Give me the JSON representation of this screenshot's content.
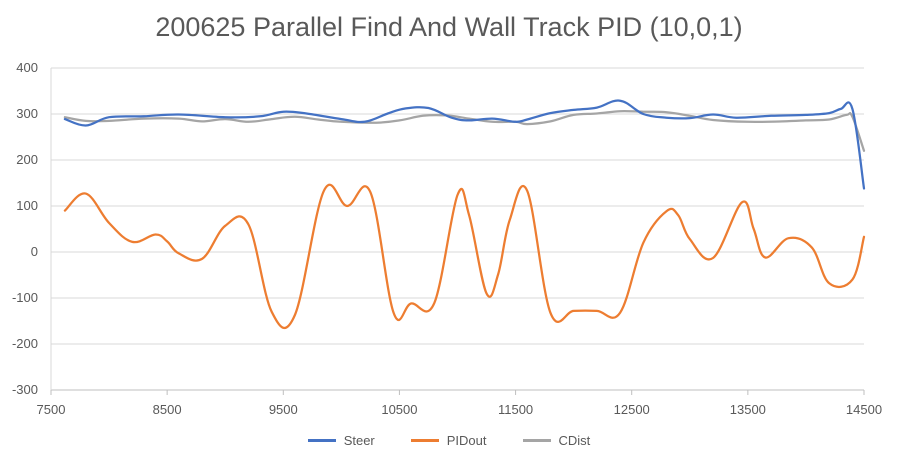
{
  "chart_data": {
    "type": "line",
    "title": "200625 Parallel Find And Wall Track PID (10,0,1)",
    "xlim": [
      7500,
      14500
    ],
    "ylim": [
      -300,
      400
    ],
    "x_ticks": [
      7500,
      8500,
      9500,
      10500,
      11500,
      12500,
      13500,
      14500
    ],
    "y_ticks": [
      -300,
      -200,
      -100,
      0,
      100,
      200,
      300,
      400
    ],
    "grid": "horizontal",
    "legend": "bottom",
    "series": [
      {
        "name": "Steer",
        "color": "#4472C4",
        "points": [
          [
            7620,
            289
          ],
          [
            7800,
            275
          ],
          [
            8000,
            293
          ],
          [
            8300,
            295
          ],
          [
            8600,
            299
          ],
          [
            9000,
            293
          ],
          [
            9300,
            295
          ],
          [
            9500,
            305
          ],
          [
            9700,
            301
          ],
          [
            10000,
            289
          ],
          [
            10200,
            283
          ],
          [
            10400,
            301
          ],
          [
            10550,
            312
          ],
          [
            10750,
            313
          ],
          [
            10950,
            292
          ],
          [
            11100,
            286
          ],
          [
            11300,
            290
          ],
          [
            11500,
            283
          ],
          [
            11600,
            288
          ],
          [
            11800,
            302
          ],
          [
            12000,
            309
          ],
          [
            12200,
            314
          ],
          [
            12400,
            329
          ],
          [
            12600,
            300
          ],
          [
            12800,
            292
          ],
          [
            13000,
            291
          ],
          [
            13200,
            299
          ],
          [
            13400,
            292
          ],
          [
            13700,
            296
          ],
          [
            14000,
            298
          ],
          [
            14200,
            302
          ],
          [
            14300,
            311
          ],
          [
            14400,
            311
          ],
          [
            14500,
            138
          ]
        ]
      },
      {
        "name": "PIDout",
        "color": "#ED7D31",
        "points": [
          [
            7620,
            90
          ],
          [
            7800,
            127
          ],
          [
            8000,
            63
          ],
          [
            8200,
            22
          ],
          [
            8400,
            38
          ],
          [
            8500,
            23
          ],
          [
            8600,
            -3
          ],
          [
            8800,
            -15
          ],
          [
            9000,
            57
          ],
          [
            9200,
            60
          ],
          [
            9400,
            -130
          ],
          [
            9600,
            -137
          ],
          [
            9850,
            133
          ],
          [
            10050,
            100
          ],
          [
            10250,
            130
          ],
          [
            10450,
            -132
          ],
          [
            10600,
            -112
          ],
          [
            10800,
            -111
          ],
          [
            11000,
            124
          ],
          [
            11100,
            80
          ],
          [
            11250,
            -90
          ],
          [
            11350,
            -48
          ],
          [
            11450,
            70
          ],
          [
            11600,
            133
          ],
          [
            11800,
            -132
          ],
          [
            12000,
            -128
          ],
          [
            12200,
            -128
          ],
          [
            12400,
            -132
          ],
          [
            12600,
            20
          ],
          [
            12800,
            89
          ],
          [
            12900,
            80
          ],
          [
            13000,
            28
          ],
          [
            13200,
            -13
          ],
          [
            13450,
            108
          ],
          [
            13550,
            50
          ],
          [
            13650,
            -12
          ],
          [
            13850,
            30
          ],
          [
            14050,
            10
          ],
          [
            14200,
            -68
          ],
          [
            14400,
            -60
          ],
          [
            14500,
            33
          ]
        ]
      },
      {
        "name": "CDist",
        "color": "#A5A5A5",
        "points": [
          [
            7620,
            293
          ],
          [
            7800,
            285
          ],
          [
            8000,
            285
          ],
          [
            8300,
            290
          ],
          [
            8600,
            290
          ],
          [
            8800,
            284
          ],
          [
            9000,
            289
          ],
          [
            9200,
            283
          ],
          [
            9400,
            289
          ],
          [
            9600,
            294
          ],
          [
            9800,
            288
          ],
          [
            10000,
            283
          ],
          [
            10300,
            281
          ],
          [
            10500,
            286
          ],
          [
            10700,
            296
          ],
          [
            10900,
            297
          ],
          [
            11100,
            290
          ],
          [
            11300,
            283
          ],
          [
            11500,
            283
          ],
          [
            11600,
            278
          ],
          [
            11800,
            284
          ],
          [
            12000,
            298
          ],
          [
            12200,
            301
          ],
          [
            12400,
            306
          ],
          [
            12600,
            305
          ],
          [
            12800,
            304
          ],
          [
            13000,
            296
          ],
          [
            13200,
            287
          ],
          [
            13500,
            283
          ],
          [
            13800,
            284
          ],
          [
            14000,
            286
          ],
          [
            14200,
            288
          ],
          [
            14350,
            298
          ],
          [
            14400,
            294
          ],
          [
            14500,
            220
          ]
        ]
      }
    ]
  }
}
